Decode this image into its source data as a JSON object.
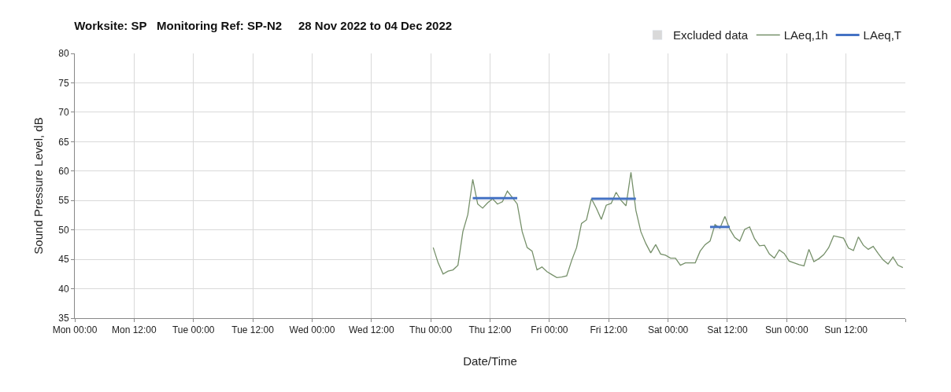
{
  "chart_data": {
    "type": "line",
    "title": "Worksite: SP   Monitoring Ref: SP-N2     28 Nov 2022 to 04 Dec 2022",
    "xlabel": "Date/Time",
    "ylabel": "Sound Pressure Level, dB",
    "xlim": [
      "2022-11-28T00:00",
      "2022-12-05T00:00"
    ],
    "ylim": [
      35,
      80
    ],
    "xticks": [
      {
        "value": "2022-11-28T00:00",
        "label": "Mon 00:00"
      },
      {
        "value": "2022-11-28T12:00",
        "label": "Mon 12:00"
      },
      {
        "value": "2022-11-29T00:00",
        "label": "Tue 00:00"
      },
      {
        "value": "2022-11-29T12:00",
        "label": "Tue 12:00"
      },
      {
        "value": "2022-11-30T00:00",
        "label": "Wed 00:00"
      },
      {
        "value": "2022-11-30T12:00",
        "label": "Wed 12:00"
      },
      {
        "value": "2022-12-01T00:00",
        "label": "Thu 00:00"
      },
      {
        "value": "2022-12-01T12:00",
        "label": "Thu 12:00"
      },
      {
        "value": "2022-12-02T00:00",
        "label": "Fri 00:00"
      },
      {
        "value": "2022-12-02T12:00",
        "label": "Fri 12:00"
      },
      {
        "value": "2022-12-03T00:00",
        "label": "Sat 00:00"
      },
      {
        "value": "2022-12-03T12:00",
        "label": "Sat 12:00"
      },
      {
        "value": "2022-12-04T00:00",
        "label": "Sun 00:00"
      },
      {
        "value": "2022-12-04T12:00",
        "label": "Sun 12:00"
      },
      {
        "value": "2022-12-05T00:00",
        "label": null
      }
    ],
    "yticks": [
      35,
      40,
      45,
      50,
      55,
      60,
      65,
      70,
      75,
      80
    ],
    "grid": true,
    "legend": "top right",
    "series": [
      {
        "name": "Excluded data",
        "type": "bar",
        "color": "#d9d9d9"
      },
      {
        "name": "LAeq,1h",
        "color": "#76906a",
        "x": [
          "2022-12-01T00:30",
          "2022-12-01T01:30",
          "2022-12-01T02:30",
          "2022-12-01T03:30",
          "2022-12-01T04:30",
          "2022-12-01T05:30",
          "2022-12-01T06:30",
          "2022-12-01T07:30",
          "2022-12-01T08:30",
          "2022-12-01T09:30",
          "2022-12-01T10:30",
          "2022-12-01T11:30",
          "2022-12-01T12:30",
          "2022-12-01T13:30",
          "2022-12-01T14:30",
          "2022-12-01T15:30",
          "2022-12-01T16:30",
          "2022-12-01T17:30",
          "2022-12-01T18:30",
          "2022-12-01T19:30",
          "2022-12-01T20:30",
          "2022-12-01T21:30",
          "2022-12-01T22:30",
          "2022-12-01T23:30",
          "2022-12-02T00:30",
          "2022-12-02T01:30",
          "2022-12-02T02:30",
          "2022-12-02T03:30",
          "2022-12-02T04:30",
          "2022-12-02T05:30",
          "2022-12-02T06:30",
          "2022-12-02T07:30",
          "2022-12-02T08:30",
          "2022-12-02T09:30",
          "2022-12-02T10:30",
          "2022-12-02T11:30",
          "2022-12-02T12:30",
          "2022-12-02T13:30",
          "2022-12-02T14:30",
          "2022-12-02T15:30",
          "2022-12-02T16:30",
          "2022-12-02T17:30",
          "2022-12-02T18:30",
          "2022-12-02T19:30",
          "2022-12-02T20:30",
          "2022-12-02T21:30",
          "2022-12-02T22:30",
          "2022-12-02T23:30",
          "2022-12-03T00:30",
          "2022-12-03T01:30",
          "2022-12-03T02:30",
          "2022-12-03T03:30",
          "2022-12-03T04:30",
          "2022-12-03T05:30",
          "2022-12-03T06:30",
          "2022-12-03T07:30",
          "2022-12-03T08:30",
          "2022-12-03T09:30",
          "2022-12-03T10:30",
          "2022-12-03T11:30",
          "2022-12-03T12:30",
          "2022-12-03T13:30",
          "2022-12-03T14:30",
          "2022-12-03T15:30",
          "2022-12-03T16:30",
          "2022-12-03T17:30",
          "2022-12-03T18:30",
          "2022-12-03T19:30",
          "2022-12-03T20:30",
          "2022-12-03T21:30",
          "2022-12-03T22:30",
          "2022-12-03T23:30",
          "2022-12-04T00:30",
          "2022-12-04T01:30",
          "2022-12-04T02:30",
          "2022-12-04T03:30",
          "2022-12-04T04:30",
          "2022-12-04T05:30",
          "2022-12-04T06:30",
          "2022-12-04T07:30",
          "2022-12-04T08:30",
          "2022-12-04T09:30",
          "2022-12-04T10:30",
          "2022-12-04T11:30",
          "2022-12-04T12:30",
          "2022-12-04T13:30",
          "2022-12-04T14:30",
          "2022-12-04T15:30",
          "2022-12-04T16:30",
          "2022-12-04T17:30",
          "2022-12-04T18:30",
          "2022-12-04T19:30",
          "2022-12-04T20:30",
          "2022-12-04T21:30",
          "2022-12-04T22:30",
          "2022-12-04T23:30"
        ],
        "values": [
          47.0,
          44.4,
          42.5,
          43.0,
          43.2,
          44.0,
          49.7,
          52.6,
          58.6,
          54.4,
          53.7,
          54.6,
          55.3,
          54.4,
          54.8,
          56.6,
          55.5,
          54.4,
          49.7,
          47.0,
          46.4,
          43.2,
          43.7,
          42.9,
          42.4,
          41.9,
          42.0,
          42.2,
          44.8,
          47.0,
          51.1,
          51.7,
          55.3,
          53.7,
          51.8,
          54.2,
          54.5,
          56.4,
          55.0,
          54.1,
          59.8,
          53.3,
          49.7,
          47.7,
          46.1,
          47.5,
          45.9,
          45.7,
          45.2,
          45.2,
          44.0,
          44.4,
          44.4,
          44.4,
          46.4,
          47.5,
          48.1,
          50.9,
          50.3,
          52.3,
          50.1,
          48.7,
          48.1,
          50.1,
          50.5,
          48.5,
          47.3,
          47.4,
          45.9,
          45.2,
          46.6,
          46.0,
          44.7,
          44.4,
          44.1,
          43.9,
          46.7,
          44.6,
          45.1,
          45.8,
          47.0,
          49.0,
          48.8,
          48.6,
          46.9,
          46.5,
          48.8,
          47.4,
          46.7,
          47.2,
          46.0,
          44.9,
          44.2,
          45.4,
          44.0,
          43.6
        ]
      },
      {
        "name": "LAeq,T",
        "color": "#4472c4",
        "x": [
          "2022-12-01T08:30",
          "2022-12-01T17:30",
          null,
          "2022-12-02T08:30",
          "2022-12-02T17:30",
          null,
          "2022-12-03T08:30",
          "2022-12-03T12:30"
        ],
        "values": [
          55.4,
          55.4,
          null,
          55.3,
          55.3,
          null,
          50.5,
          50.5
        ]
      }
    ]
  }
}
